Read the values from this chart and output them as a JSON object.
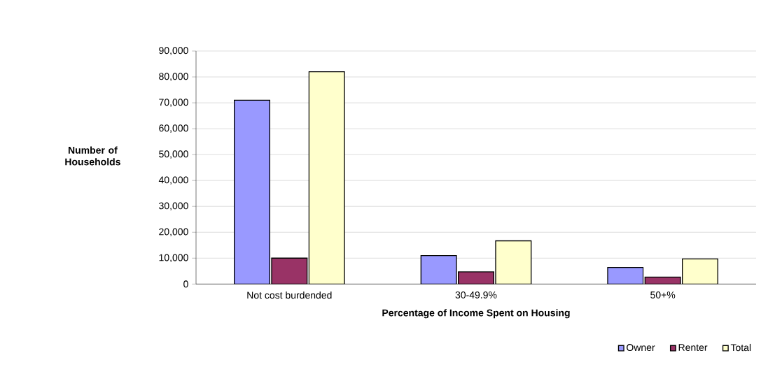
{
  "chart_data": {
    "type": "bar",
    "xlabel": "Percentage of Income Spent on Housing",
    "ylabel": "Number of Households",
    "categories": [
      "Not cost burdended",
      "30-49.9%",
      "50+%"
    ],
    "series": [
      {
        "name": "Owner",
        "color": "#9999ff",
        "values": [
          71000,
          11000,
          6400
        ]
      },
      {
        "name": "Renter",
        "color": "#993366",
        "values": [
          10000,
          4700,
          2700
        ]
      },
      {
        "name": "Total",
        "color": "#ffffcc",
        "values": [
          82000,
          16700,
          9700
        ]
      }
    ],
    "ylim": [
      0,
      90000
    ],
    "yticks": [
      {
        "value": 0,
        "label": "0"
      },
      {
        "value": 10000,
        "label": "10,000"
      },
      {
        "value": 20000,
        "label": "20,000"
      },
      {
        "value": 30000,
        "label": "30,000"
      },
      {
        "value": 40000,
        "label": "40,000"
      },
      {
        "value": 50000,
        "label": "50,000"
      },
      {
        "value": 60000,
        "label": "60,000"
      },
      {
        "value": 70000,
        "label": "70,000"
      },
      {
        "value": 80000,
        "label": "80,000"
      },
      {
        "value": 90000,
        "label": "90,000"
      }
    ],
    "grid": "y",
    "legend": "bottom right"
  }
}
